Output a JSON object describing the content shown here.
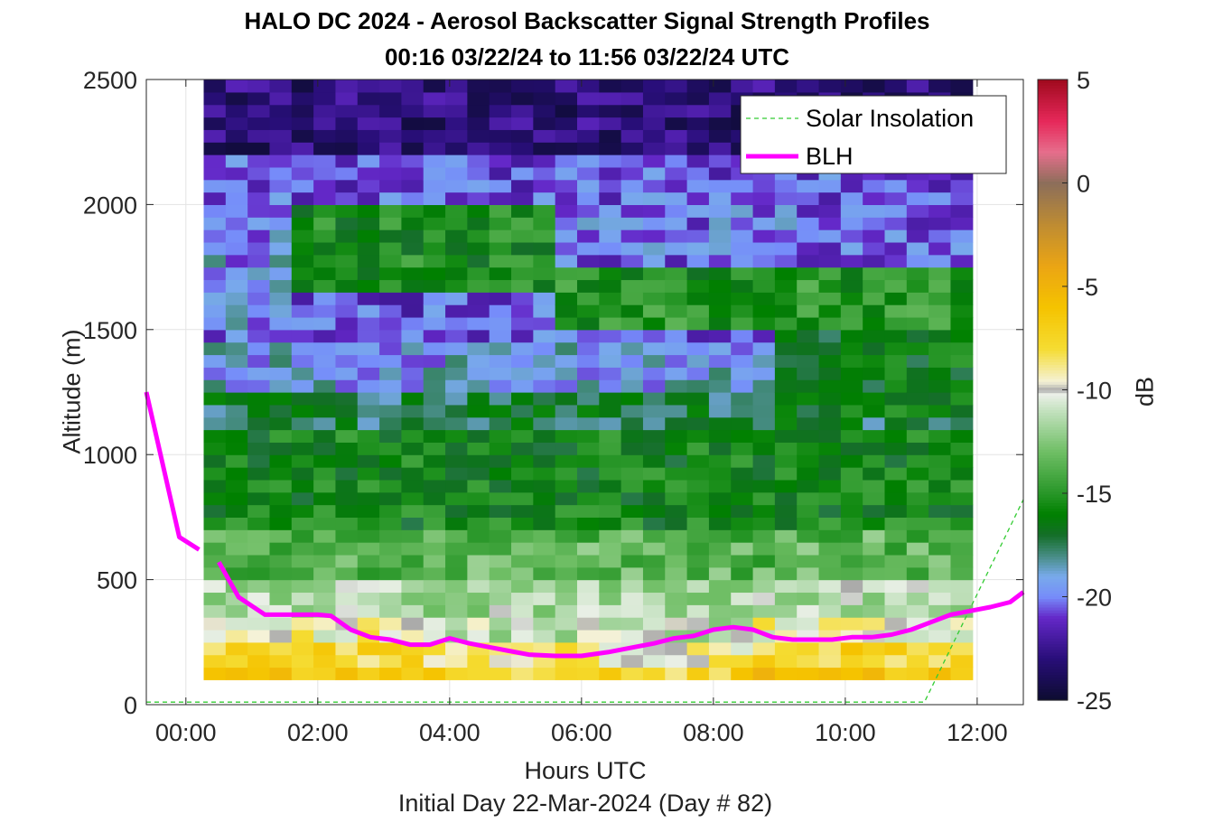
{
  "chart_data": {
    "type": "heatmap",
    "title": "HALO DC 2024 - Aerosol Backscatter Signal Strength Profiles",
    "subtitle": "00:16 03/22/24 to 11:56 03/22/24  UTC",
    "xlabel": "Hours UTC",
    "xlabel2": "Initial Day 22-Mar-2024 (Day # 82)",
    "ylabel": "Altitude (m)",
    "colorbar_label": "dB",
    "xlim": [
      -0.6,
      12.7
    ],
    "ylim": [
      0,
      2500
    ],
    "clim": [
      -25,
      5
    ],
    "x_ticks": [
      0,
      2,
      4,
      6,
      8,
      10,
      12
    ],
    "x_tick_labels": [
      "00:00",
      "02:00",
      "04:00",
      "06:00",
      "08:00",
      "10:00",
      "12:00"
    ],
    "y_ticks": [
      0,
      500,
      1000,
      1500,
      2000,
      2500
    ],
    "y_tick_labels": [
      "0",
      "500",
      "1000",
      "1500",
      "2000",
      "2500"
    ],
    "colorbar_ticks": [
      5,
      0,
      -5,
      -10,
      -15,
      -20,
      -25
    ],
    "colorbar_tick_labels": [
      "5",
      "0",
      "-5",
      "-10",
      "-15",
      "-20",
      "-25"
    ],
    "grid": true,
    "legend_position": "top-right",
    "heatmap": {
      "time_start_hours": 0.27,
      "time_end_hours": 11.93,
      "altitude_start_m": 100,
      "altitude_end_m": 2500,
      "altitude_bin_m": 50,
      "n_time_bins": 35
    },
    "series": [
      {
        "name": "Solar Insolation",
        "color": "#33cc33",
        "style": "dashed",
        "x": [
          -0.6,
          11.2,
          12.7
        ],
        "y": [
          10,
          10,
          820
        ]
      },
      {
        "name": "BLH",
        "color": "#ff00ff",
        "style": "solid",
        "segments": [
          {
            "x": [
              -0.6,
              -0.1,
              0.2
            ],
            "y": [
              1250,
              670,
              620
            ]
          },
          {
            "x": [
              0.5,
              0.8,
              1.2,
              1.6,
              2.0,
              2.2,
              2.5,
              2.8,
              3.1,
              3.4,
              3.7,
              4.0,
              4.3,
              4.6,
              4.9,
              5.2,
              5.6,
              6.0,
              6.4,
              6.8,
              7.1,
              7.4,
              7.7,
              8.0,
              8.3,
              8.6,
              8.9,
              9.2,
              9.5,
              9.8,
              10.1,
              10.4,
              10.7,
              11.0,
              11.3,
              11.6,
              11.9,
              12.2,
              12.5,
              12.7
            ],
            "y": [
              570,
              430,
              360,
              360,
              360,
              355,
              300,
              270,
              260,
              240,
              240,
              265,
              245,
              230,
              215,
              200,
              195,
              195,
              210,
              230,
              245,
              265,
              275,
              300,
              310,
              300,
              270,
              260,
              260,
              260,
              270,
              270,
              280,
              300,
              330,
              360,
              375,
              390,
              410,
              450
            ]
          }
        ]
      }
    ]
  }
}
